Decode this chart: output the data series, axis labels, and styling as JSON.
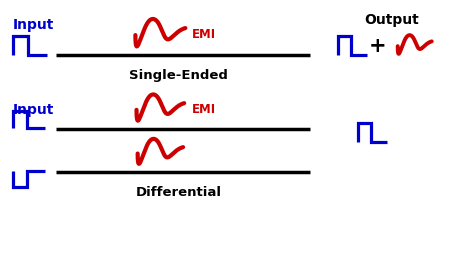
{
  "bg_color": "#ffffff",
  "blue": "#0000cc",
  "red": "#cc0000",
  "black": "#000000",
  "title_output": "Output",
  "label_input": "Input",
  "label_single": "Single-Ended",
  "label_diff": "Differential",
  "label_emi": "EMI",
  "figsize": [
    4.57,
    2.66
  ],
  "dpi": 100
}
